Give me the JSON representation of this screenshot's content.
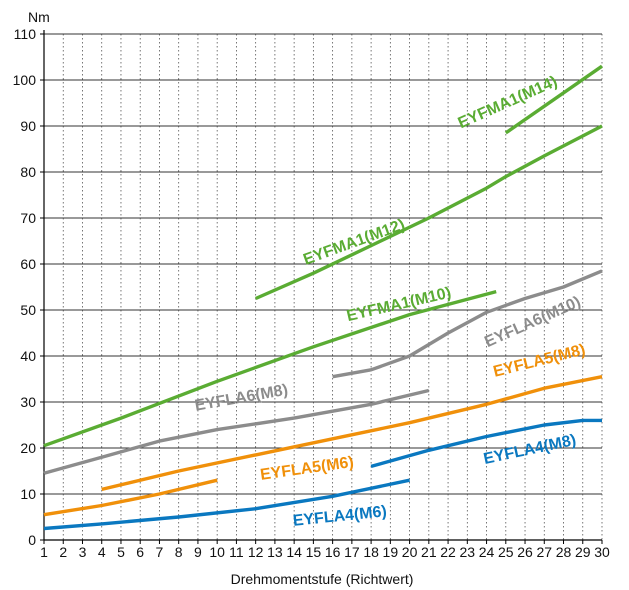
{
  "chart_data": {
    "type": "line",
    "ylabel": "Nm",
    "xlabel": "Drehmomentstufe (Richtwert)",
    "xlim": [
      1,
      30
    ],
    "ylim": [
      0,
      110
    ],
    "grid": true,
    "x_ticks": [
      1,
      2,
      3,
      4,
      5,
      6,
      7,
      8,
      9,
      10,
      11,
      12,
      13,
      14,
      15,
      16,
      17,
      18,
      19,
      20,
      21,
      22,
      23,
      24,
      25,
      26,
      27,
      28,
      29,
      30
    ],
    "y_ticks": [
      0,
      10,
      20,
      30,
      40,
      50,
      60,
      70,
      80,
      90,
      100,
      110
    ],
    "series": [
      {
        "name": "EYFMA1(M14)",
        "color": "#5aac33",
        "points": [
          [
            25,
            88.5
          ],
          [
            30,
            103
          ]
        ]
      },
      {
        "name": "EYFMA1(M12)",
        "color": "#5aac33",
        "points": [
          [
            12,
            52.5
          ],
          [
            15,
            58
          ],
          [
            18,
            64
          ],
          [
            21,
            70
          ],
          [
            24,
            76.5
          ],
          [
            25,
            79
          ],
          [
            27,
            83.5
          ],
          [
            30,
            90
          ]
        ]
      },
      {
        "name": "EYFMA1(M10)",
        "color": "#5aac33",
        "points": [
          [
            1,
            20.5
          ],
          [
            5,
            26.5
          ],
          [
            10,
            34.5
          ],
          [
            15,
            42
          ],
          [
            20,
            49
          ],
          [
            24.5,
            54
          ]
        ]
      },
      {
        "name": "EYFLA6(M10)",
        "color": "#8c8c8c",
        "points": [
          [
            16,
            35.5
          ],
          [
            18,
            37
          ],
          [
            20,
            40
          ],
          [
            22,
            45
          ],
          [
            24,
            49.5
          ],
          [
            26,
            52.5
          ],
          [
            28,
            55
          ],
          [
            30,
            58.5
          ]
        ]
      },
      {
        "name": "EYFLA6(M8)",
        "color": "#8c8c8c",
        "points": [
          [
            1,
            14.5
          ],
          [
            4,
            18
          ],
          [
            7,
            21.5
          ],
          [
            10,
            24
          ],
          [
            14,
            26.5
          ],
          [
            18,
            29.5
          ],
          [
            21,
            32.5
          ]
        ]
      },
      {
        "name": "EYFLA5(M8)",
        "color": "#f0900a",
        "points": [
          [
            4,
            11
          ],
          [
            8,
            15
          ],
          [
            12,
            18.5
          ],
          [
            16,
            22
          ],
          [
            20,
            25.5
          ],
          [
            24,
            29.5
          ],
          [
            27,
            33
          ],
          [
            30,
            35.5
          ]
        ]
      },
      {
        "name": "EYFLA5(M6)",
        "color": "#f0900a",
        "points": [
          [
            1,
            5.5
          ],
          [
            4,
            7.5
          ],
          [
            7,
            10
          ],
          [
            10,
            13
          ]
        ]
      },
      {
        "name": "EYFLA4(M8)",
        "color": "#0a78c0",
        "points": [
          [
            18,
            16
          ],
          [
            21,
            19.5
          ],
          [
            24,
            22.5
          ],
          [
            27,
            25
          ],
          [
            29,
            26
          ],
          [
            30,
            26
          ]
        ]
      },
      {
        "name": "EYFLA4(M6)",
        "color": "#0a78c0",
        "points": [
          [
            1,
            2.5
          ],
          [
            4,
            3.5
          ],
          [
            8,
            5
          ],
          [
            12,
            6.8
          ],
          [
            16,
            9.5
          ],
          [
            20,
            13
          ]
        ]
      }
    ]
  }
}
